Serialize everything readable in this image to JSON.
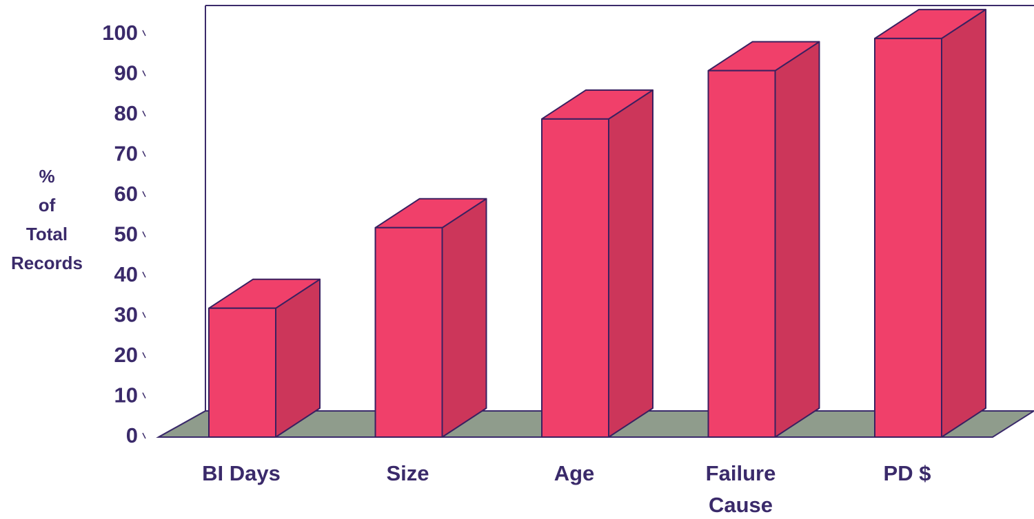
{
  "chart_data": {
    "type": "bar3d",
    "y_label": [
      "%",
      "of",
      "Total",
      "Records"
    ],
    "categories": [
      "BI Days",
      "Size",
      "Age",
      "Failure Cause",
      "PD $"
    ],
    "values": [
      32,
      52,
      79,
      91,
      99
    ],
    "color": "#f0406a",
    "ylim": [
      0,
      100
    ],
    "yticks": [
      0,
      10,
      20,
      30,
      40,
      50,
      60,
      70,
      80,
      90,
      100
    ]
  }
}
